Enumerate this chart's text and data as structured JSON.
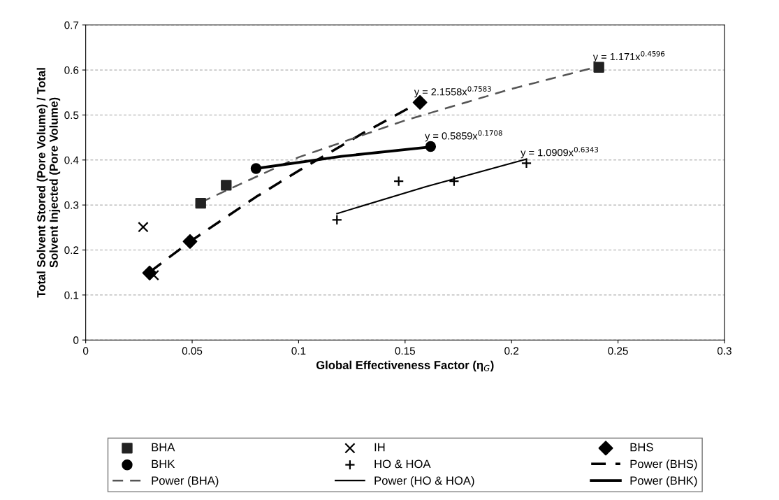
{
  "chart_data": {
    "type": "scatter",
    "xlabel": "Global Effectiveness Factor (η$_{G}$)",
    "ylabel": "Total Solvent Stored (Pore Volume) / Total\nSolvent Injected (Pore Volume)",
    "xlim": [
      0,
      0.3
    ],
    "xticks": [
      0,
      0.05,
      0.1,
      0.15,
      0.2,
      0.25,
      0.3
    ],
    "ylim": [
      0,
      0.7
    ],
    "yticks": [
      0,
      0.1,
      0.2,
      0.3,
      0.4,
      0.5,
      0.6,
      0.7
    ],
    "grid": "y",
    "legend": "bottom",
    "series": [
      {
        "name": "BHA",
        "marker": "square",
        "color": "#222222",
        "x": [
          0.054,
          0.066,
          0.241
        ],
        "values": [
          0.304,
          0.344,
          0.606
        ]
      },
      {
        "name": "IH",
        "marker": "cross",
        "color": "#000000",
        "x": [
          0.027,
          0.032
        ],
        "values": [
          0.251,
          0.144
        ]
      },
      {
        "name": "BHS",
        "marker": "diamond",
        "color": "#000000",
        "x": [
          0.03,
          0.049,
          0.157
        ],
        "values": [
          0.149,
          0.219,
          0.528
        ]
      },
      {
        "name": "BHK",
        "marker": "circle",
        "color": "#000000",
        "x": [
          0.08,
          0.162
        ],
        "values": [
          0.381,
          0.43
        ]
      },
      {
        "name": "HO & HOA",
        "marker": "plus",
        "color": "#000000",
        "x": [
          0.118,
          0.147,
          0.173,
          0.207
        ],
        "values": [
          0.267,
          0.353,
          0.353,
          0.393
        ]
      },
      {
        "name": "Power (BHS)",
        "type": "line",
        "line_style": "dashed",
        "color": "#000000",
        "x": [
          0.03,
          0.05,
          0.08,
          0.1,
          0.13,
          0.157
        ],
        "values": [
          0.151,
          0.222,
          0.318,
          0.376,
          0.459,
          0.529
        ]
      },
      {
        "name": "Power (BHA)",
        "type": "line",
        "line_style": "dashed",
        "color": "#555555",
        "x": [
          0.054,
          0.1,
          0.15,
          0.2,
          0.241
        ],
        "values": [
          0.306,
          0.406,
          0.488,
          0.558,
          0.608
        ]
      },
      {
        "name": "Power (HO & HOA)",
        "type": "line",
        "line_style": "solid",
        "color": "#000000",
        "x": [
          0.118,
          0.16,
          0.207
        ],
        "values": [
          0.281,
          0.341,
          0.402
        ]
      },
      {
        "name": "Power (BHK)",
        "type": "line",
        "line_style": "solid",
        "color": "#000000",
        "x": [
          0.08,
          0.12,
          0.162
        ],
        "values": [
          0.381,
          0.408,
          0.429
        ]
      }
    ],
    "annotations": [
      {
        "text": "y = 1.171x$^{0.4596}$",
        "x": 0.241,
        "y": 0.606
      },
      {
        "text": "y = 2.1558x$^{0.7583}$",
        "x": 0.157,
        "y": 0.528
      },
      {
        "text": "y = 0.5859x$^{0.1708}$",
        "x": 0.162,
        "y": 0.43
      },
      {
        "text": "y = 1.0909x$^{0.6343}$",
        "x": 0.207,
        "y": 0.393
      }
    ]
  }
}
